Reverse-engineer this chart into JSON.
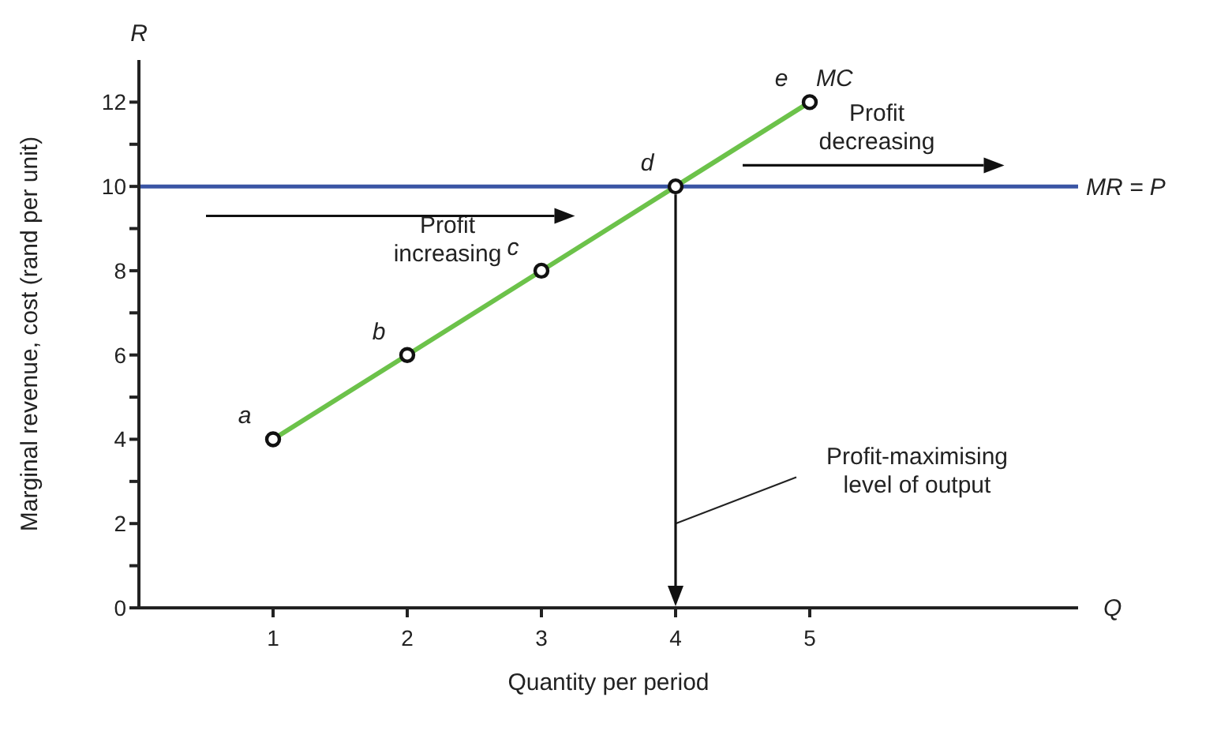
{
  "chart_data": {
    "type": "line",
    "xlabel": "Quantity per period",
    "ylabel": "Marginal revenue, cost (rand per unit)",
    "x": [
      1,
      2,
      3,
      4,
      5
    ],
    "series": [
      {
        "name": "MC",
        "color": "#6cc24a",
        "values": [
          4,
          6,
          8,
          10,
          12
        ]
      }
    ],
    "marker": "circle",
    "xlim": [
      0,
      7
    ],
    "xticks": [
      1,
      2,
      3,
      4,
      5
    ],
    "ylim": [
      0,
      13
    ],
    "yticks": [
      0,
      {
        "value": 1,
        "label": null
      },
      2,
      {
        "value": 3,
        "label": null
      },
      4,
      {
        "value": 5,
        "label": null
      },
      6,
      {
        "value": 7,
        "label": null
      },
      8,
      {
        "value": 9,
        "label": null
      },
      10,
      {
        "value": 11,
        "label": null
      },
      12
    ],
    "ref_lines": [
      {
        "axis": "y",
        "value": 10,
        "label": "MR = P",
        "color": "#3a55a4"
      }
    ],
    "annotations": [
      {
        "text": "a",
        "x": 1,
        "y": 4
      },
      {
        "text": "b",
        "x": 2,
        "y": 6
      },
      {
        "text": "c",
        "x": 3,
        "y": 8
      },
      {
        "text": "d",
        "x": 4,
        "y": 10
      },
      {
        "text": "e",
        "x": 5,
        "y": 12
      },
      "Profit increasing",
      "Profit decreasing",
      "Profit-maximising level of output",
      "R",
      "Q"
    ]
  }
}
